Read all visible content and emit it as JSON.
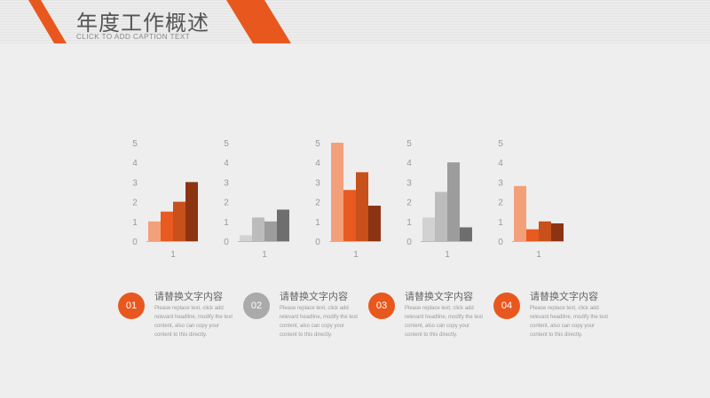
{
  "header": {
    "title": "年度工作概述",
    "subtitle": "CLICK TO ADD CAPTION TEXT"
  },
  "colors": {
    "accent": "#e8581e",
    "gray": "#aaaaaa"
  },
  "chart_data": [
    {
      "type": "bar",
      "categories": [
        "1"
      ],
      "ylim": [
        0,
        5
      ],
      "series": [
        {
          "values": [
            1.0
          ],
          "color": "#f3a07a"
        },
        {
          "values": [
            1.5
          ],
          "color": "#e85a20"
        },
        {
          "values": [
            2.0
          ],
          "color": "#c8501b"
        },
        {
          "values": [
            3.0
          ],
          "color": "#8c3312"
        }
      ]
    },
    {
      "type": "bar",
      "categories": [
        "1"
      ],
      "ylim": [
        0,
        5
      ],
      "series": [
        {
          "values": [
            0.3
          ],
          "color": "#d2d2d2"
        },
        {
          "values": [
            1.2
          ],
          "color": "#bcbcbc"
        },
        {
          "values": [
            1.0
          ],
          "color": "#9c9c9c"
        },
        {
          "values": [
            1.6
          ],
          "color": "#6e6e6e"
        }
      ]
    },
    {
      "type": "bar",
      "categories": [
        "1"
      ],
      "ylim": [
        0,
        5
      ],
      "series": [
        {
          "values": [
            5.0
          ],
          "color": "#f3a07a"
        },
        {
          "values": [
            2.6
          ],
          "color": "#e85a20"
        },
        {
          "values": [
            3.5
          ],
          "color": "#c8501b"
        },
        {
          "values": [
            1.8
          ],
          "color": "#8c3312"
        }
      ]
    },
    {
      "type": "bar",
      "categories": [
        "1"
      ],
      "ylim": [
        0,
        5
      ],
      "series": [
        {
          "values": [
            1.2
          ],
          "color": "#d2d2d2"
        },
        {
          "values": [
            2.5
          ],
          "color": "#bcbcbc"
        },
        {
          "values": [
            4.0
          ],
          "color": "#9c9c9c"
        },
        {
          "values": [
            0.7
          ],
          "color": "#6e6e6e"
        }
      ]
    },
    {
      "type": "bar",
      "categories": [
        "1"
      ],
      "ylim": [
        0,
        5
      ],
      "series": [
        {
          "values": [
            2.8
          ],
          "color": "#f3a07a"
        },
        {
          "values": [
            0.6
          ],
          "color": "#e85a20"
        },
        {
          "values": [
            1.0
          ],
          "color": "#c8501b"
        },
        {
          "values": [
            0.9
          ],
          "color": "#8c3312"
        }
      ]
    }
  ],
  "items": [
    {
      "number": "01",
      "title": "请替换文字内容",
      "desc": "Please replace text, click add relevant headline, modify the text content, also can copy your content to this directly.",
      "color": "#e8581e"
    },
    {
      "number": "02",
      "title": "请替换文字内容",
      "desc": "Please replace text, click add relevant headline, modify the text content, also can copy your content to this directly.",
      "color": "#aaaaaa"
    },
    {
      "number": "03",
      "title": "请替换文字内容",
      "desc": "Please replace text, click add relevant headline, modify the text content, also can copy your content to this directly.",
      "color": "#e8581e"
    },
    {
      "number": "04",
      "title": "请替换文字内容",
      "desc": "Please replace text, click add relevant headline, modify the text content, also can copy your content to this directly.",
      "color": "#e8581e"
    }
  ]
}
